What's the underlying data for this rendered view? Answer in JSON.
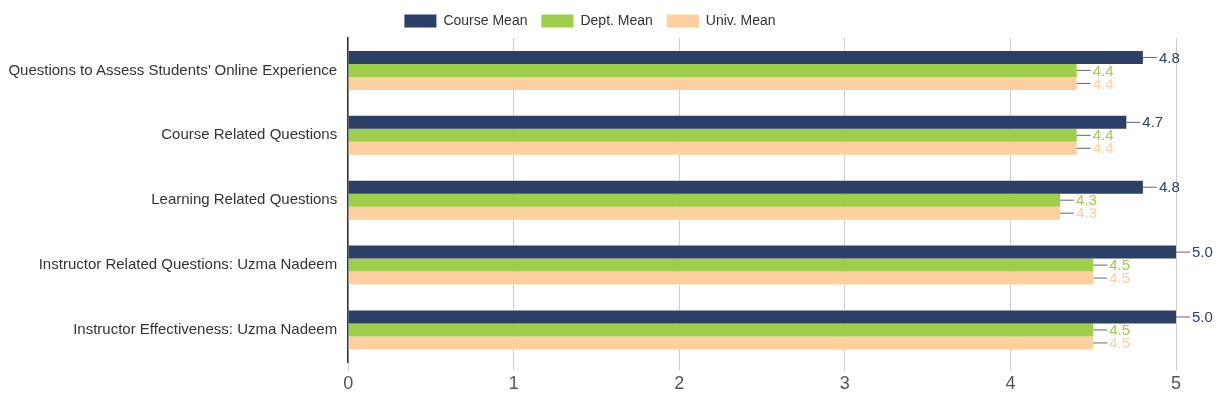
{
  "chart_data": {
    "type": "bar",
    "orientation": "horizontal",
    "categories": [
      "Questions to Assess Students’ Online Experience",
      "Course Related Questions",
      "Learning Related Questions",
      "Instructor Related Questions: Uzma Nadeem",
      "Instructor Effectiveness: Uzma Nadeem"
    ],
    "series": [
      {
        "name": "Course Mean",
        "color": "#2c3f66",
        "values": [
          4.8,
          4.7,
          4.8,
          5.0,
          5.0
        ],
        "value_labels": [
          "4.8",
          "4.7",
          "4.8",
          "5.0",
          "5.0"
        ]
      },
      {
        "name": "Dept. Mean",
        "color": "#9dcf4b",
        "values": [
          4.4,
          4.4,
          4.3,
          4.5,
          4.5
        ],
        "value_labels": [
          "4.4",
          "4.4",
          "4.3",
          "4.5",
          "4.5"
        ]
      },
      {
        "name": "Univ. Mean",
        "color": "#fdd09f",
        "values": [
          4.4,
          4.4,
          4.3,
          4.5,
          4.5
        ],
        "value_labels": [
          "4.4",
          "4.4",
          "4.3",
          "4.5",
          "4.5"
        ]
      }
    ],
    "xlim": [
      0,
      5
    ],
    "xticks": [
      0,
      1,
      2,
      3,
      4,
      5
    ],
    "grid": "x",
    "legend": "top"
  }
}
